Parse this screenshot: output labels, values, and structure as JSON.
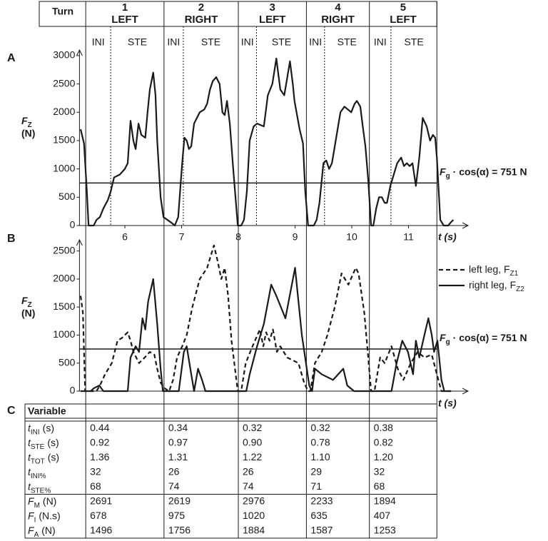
{
  "panel_labels": [
    "A",
    "B",
    "C"
  ],
  "header": {
    "label": "Turn",
    "turns": [
      {
        "number": 1,
        "side": "LEFT",
        "phases": [
          "INI",
          "STE"
        ]
      },
      {
        "number": 2,
        "side": "RIGHT",
        "phases": [
          "INI",
          "STE"
        ]
      },
      {
        "number": 3,
        "side": "LEFT",
        "phases": [
          "INI",
          "STE"
        ]
      },
      {
        "number": 4,
        "side": "RIGHT",
        "phases": [
          "INI",
          "STE"
        ]
      },
      {
        "number": 5,
        "side": "LEFT",
        "phases": [
          "INI",
          "STE"
        ]
      }
    ]
  },
  "chart_data": [
    {
      "type": "line",
      "xlim": [
        5.2,
        12.05
      ],
      "xticks": [
        6,
        7,
        8,
        9,
        10,
        11
      ],
      "xlabel": "t (s)",
      "ylim": [
        0,
        3100
      ],
      "yticks": [
        0,
        500,
        1000,
        1500,
        2000,
        2500,
        3000
      ],
      "ylabel": {
        "symbol": "F",
        "sub": "Z",
        "unit": "(N)"
      },
      "turn_boundaries": [
        5.31,
        6.69,
        8.0,
        9.2,
        10.31,
        11.5
      ],
      "ini_ends": [
        5.75,
        7.03,
        8.32,
        9.52,
        10.69
      ],
      "reference_line": {
        "value": 751,
        "symbol": "F",
        "sub": "g",
        "text": "· cos(α) = 751 N"
      },
      "series": [
        {
          "color": "#1a1a1a",
          "line_style": "solid",
          "x": [
            5.22,
            5.28,
            5.33,
            5.36,
            5.45,
            5.5,
            5.56,
            5.62,
            5.7,
            5.75,
            5.81,
            5.91,
            6.0,
            6.05,
            6.1,
            6.15,
            6.19,
            6.24,
            6.29,
            6.36,
            6.4,
            6.44,
            6.5,
            6.54,
            6.57,
            6.63,
            6.68,
            6.75,
            6.82,
            6.88,
            6.94,
            7.01,
            7.05,
            7.09,
            7.13,
            7.17,
            7.22,
            7.32,
            7.4,
            7.45,
            7.5,
            7.55,
            7.61,
            7.67,
            7.72,
            7.76,
            7.8,
            7.85,
            7.91,
            7.99,
            8.05,
            8.1,
            8.15,
            8.2,
            8.27,
            8.33,
            8.45,
            8.52,
            8.6,
            8.67,
            8.74,
            8.81,
            8.86,
            8.91,
            8.96,
            8.99,
            9.08,
            9.14,
            9.18,
            9.23,
            9.33,
            9.38,
            9.43,
            9.5,
            9.55,
            9.6,
            9.65,
            9.7,
            9.75,
            9.8,
            9.87,
            9.93,
            9.99,
            10.05,
            10.09,
            10.15,
            10.2,
            10.24,
            10.29,
            10.34,
            10.38,
            10.43,
            10.48,
            10.53,
            10.58,
            10.62,
            10.68,
            10.74,
            10.8,
            10.87,
            10.92,
            10.97,
            11.02,
            11.07,
            11.13,
            11.19,
            11.25,
            11.32,
            11.38,
            11.43,
            11.47,
            11.5,
            11.56,
            11.62,
            11.7,
            11.74,
            11.79
          ],
          "values": [
            1700,
            1450,
            600,
            0,
            0,
            100,
            150,
            300,
            450,
            600,
            850,
            900,
            1000,
            1100,
            1850,
            1500,
            1350,
            1800,
            1600,
            1550,
            2000,
            2400,
            2700,
            2300,
            1500,
            500,
            150,
            100,
            50,
            0,
            150,
            1100,
            1550,
            1500,
            1350,
            1400,
            1800,
            2000,
            2050,
            2150,
            2400,
            2550,
            2620,
            2500,
            2000,
            1950,
            2200,
            1800,
            1000,
            0,
            0,
            100,
            600,
            1500,
            1750,
            1800,
            1750,
            2300,
            2500,
            2950,
            2400,
            2300,
            2600,
            2900,
            2500,
            2200,
            1700,
            1450,
            600,
            0,
            0,
            100,
            400,
            1100,
            1150,
            1000,
            1100,
            1400,
            1700,
            2000,
            2100,
            2050,
            2000,
            2150,
            2200,
            2100,
            1700,
            1400,
            800,
            0,
            0,
            300,
            500,
            500,
            400,
            400,
            700,
            900,
            1100,
            1200,
            1050,
            1100,
            1050,
            1100,
            700,
            1200,
            1900,
            1750,
            1500,
            1600,
            1550,
            1200,
            100,
            0,
            0,
            50,
            100
          ]
        }
      ]
    },
    {
      "type": "line",
      "xlim": [
        5.2,
        12.05
      ],
      "xlabel": "t (s)",
      "ylim": [
        0,
        2700
      ],
      "yticks": [
        0,
        500,
        1000,
        1500,
        2000,
        2500
      ],
      "ylabel": {
        "symbol": "F",
        "sub": "Z",
        "unit": "(N)"
      },
      "reference_line": {
        "value": 751,
        "symbol": "F",
        "sub": "g",
        "text": "· cos(α) = 751 N"
      },
      "legend": "right",
      "series": [
        {
          "name": "left leg, F",
          "name_sub": "Z1",
          "color": "#1a1a1a",
          "line_style": "dashed",
          "x": [
            5.22,
            5.26,
            5.3,
            5.5,
            5.56,
            5.65,
            5.77,
            5.87,
            5.95,
            6.05,
            6.1,
            6.15,
            6.25,
            6.35,
            6.44,
            6.52,
            6.57,
            6.63,
            6.7,
            6.78,
            6.85,
            6.92,
            7.01,
            7.09,
            7.19,
            7.32,
            7.45,
            7.57,
            7.64,
            7.7,
            7.76,
            7.82,
            7.88,
            7.99,
            8.05,
            8.13,
            8.25,
            8.38,
            8.44,
            8.49,
            8.55,
            8.61,
            8.68,
            8.74,
            8.86,
            8.96,
            9.06,
            9.16,
            9.23,
            9.27,
            9.35,
            9.47,
            9.57,
            9.7,
            9.82,
            9.94,
            10.07,
            10.12,
            10.22,
            10.29,
            10.34,
            10.4,
            10.5,
            10.58,
            10.7,
            10.81,
            10.91,
            11.04,
            11.16,
            11.28,
            11.41,
            11.5,
            11.58,
            11.75
          ],
          "values": [
            1700,
            1400,
            0,
            0,
            100,
            300,
            500,
            900,
            950,
            1050,
            900,
            700,
            500,
            600,
            700,
            650,
            400,
            150,
            50,
            0,
            200,
            600,
            800,
            1000,
            1500,
            2000,
            2200,
            2600,
            2300,
            2000,
            2200,
            1700,
            900,
            0,
            0,
            500,
            800,
            1100,
            800,
            1050,
            900,
            1100,
            700,
            800,
            600,
            550,
            500,
            150,
            0,
            0,
            500,
            700,
            1000,
            1500,
            2100,
            1900,
            2200,
            2100,
            1400,
            600,
            0,
            0,
            600,
            500,
            800,
            400,
            200,
            500,
            700,
            600,
            650,
            300,
            0,
            0
          ]
        },
        {
          "name": "right leg, F",
          "name_sub": "Z2",
          "color": "#1a1a1a",
          "line_style": "solid",
          "x": [
            5.22,
            5.4,
            5.45,
            5.55,
            5.62,
            6.05,
            6.1,
            6.19,
            6.25,
            6.31,
            6.36,
            6.41,
            6.5,
            6.57,
            6.63,
            6.67,
            6.95,
            7.04,
            7.09,
            7.17,
            7.22,
            7.29,
            7.36,
            7.42,
            8.14,
            8.2,
            8.33,
            8.45,
            8.58,
            8.67,
            8.83,
            9.0,
            9.12,
            9.25,
            9.3,
            9.35,
            9.47,
            9.67,
            9.85,
            9.92,
            10.04,
            10.7,
            10.79,
            10.89,
            10.99,
            11.08,
            11.13,
            11.19,
            11.28,
            11.35,
            11.41,
            11.45,
            11.51,
            11.58,
            11.63,
            11.75
          ],
          "values": [
            0,
            0,
            50,
            100,
            0,
            0,
            600,
            800,
            700,
            1300,
            1100,
            1600,
            2000,
            1200,
            400,
            0,
            0,
            700,
            800,
            300,
            0,
            400,
            200,
            0,
            0,
            300,
            800,
            1200,
            1900,
            1700,
            1300,
            2200,
            1000,
            100,
            0,
            400,
            300,
            200,
            400,
            100,
            0,
            0,
            500,
            900,
            700,
            300,
            900,
            600,
            1000,
            1300,
            1000,
            700,
            900,
            200,
            0,
            0
          ]
        }
      ]
    }
  ],
  "table": {
    "header": "Variable",
    "rows": [
      {
        "label": {
          "symbol": "t",
          "sub": "INI",
          "unit": "(s)"
        },
        "cells": [
          "0.44",
          "0.34",
          "0.32",
          "0.32",
          "0.38"
        ]
      },
      {
        "label": {
          "symbol": "t",
          "sub": "STE",
          "unit": "(s)"
        },
        "cells": [
          "0.92",
          "0.97",
          "0.90",
          "0.78",
          "0.82"
        ]
      },
      {
        "label": {
          "symbol": "t",
          "sub": "TOT",
          "unit": "(s)"
        },
        "cells": [
          "1.36",
          "1.31",
          "1.22",
          "1.10",
          "1.20"
        ]
      },
      {
        "label": {
          "symbol": "t",
          "sub": "INI%"
        },
        "cells": [
          "32",
          "26",
          "26",
          "29",
          "32"
        ]
      },
      {
        "label": {
          "symbol": "t",
          "sub": "STE%"
        },
        "cells": [
          "68",
          "74",
          "74",
          "71",
          "68"
        ]
      },
      {
        "label": {
          "symbol": "F",
          "sub": "M",
          "unit": "(N)"
        },
        "cells": [
          "2691",
          "2619",
          "2976",
          "2233",
          "1894"
        ]
      },
      {
        "label": {
          "symbol": "F",
          "sub": "I",
          "unit": "(N.s)"
        },
        "cells": [
          "678",
          "975",
          "1020",
          "635",
          "407"
        ]
      },
      {
        "label": {
          "symbol": "F",
          "sub": "A",
          "unit": "(N)"
        },
        "cells": [
          "1496",
          "1756",
          "1884",
          "1587",
          "1253"
        ]
      }
    ]
  }
}
